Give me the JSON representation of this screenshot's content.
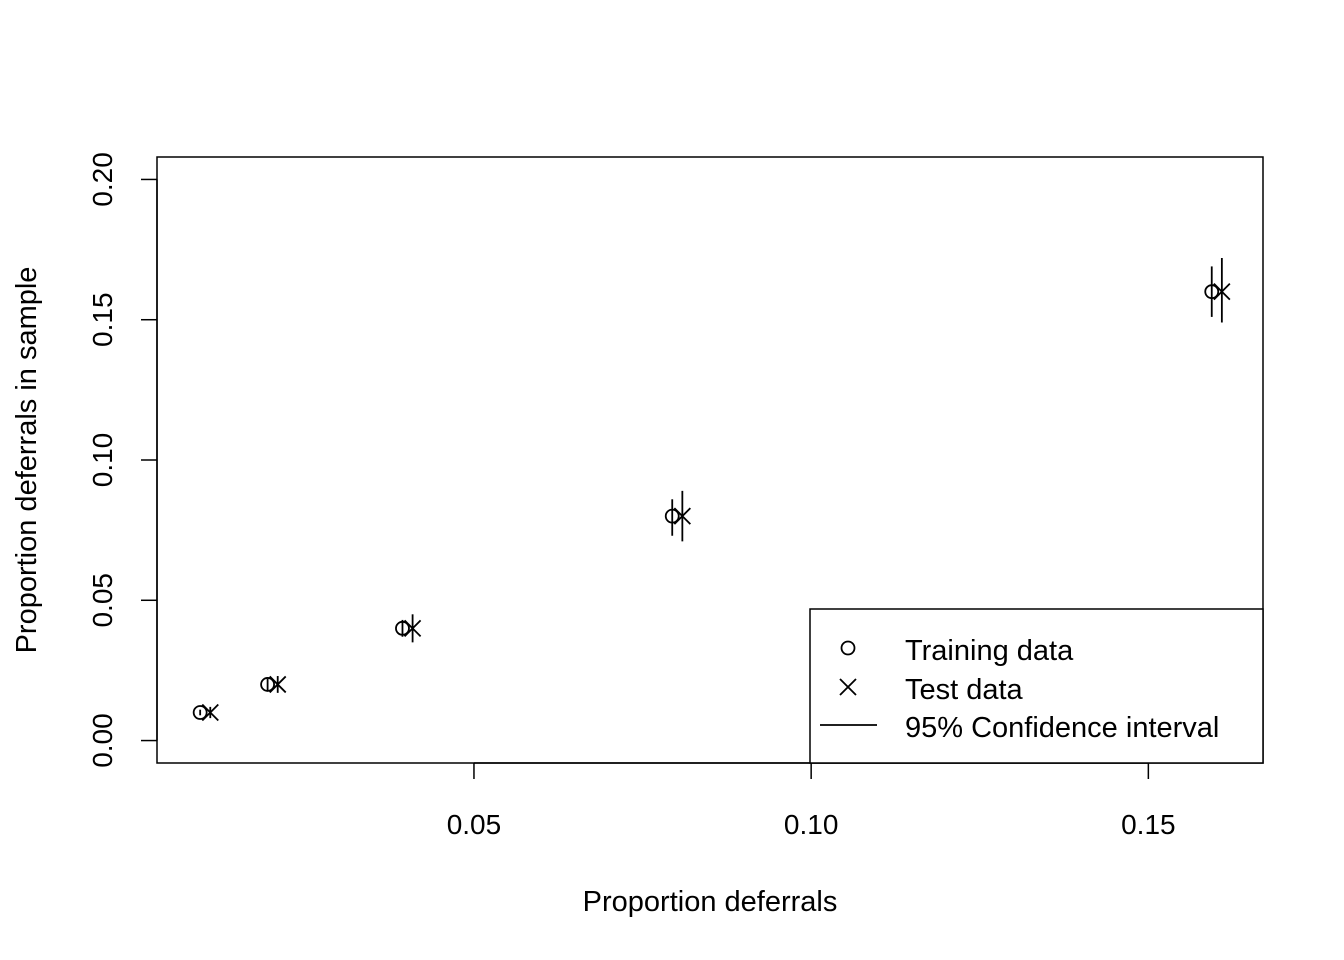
{
  "chart_data": {
    "type": "scatter",
    "title": "",
    "xlabel": "Proportion deferrals",
    "ylabel": "Proportion deferrals in sample",
    "xlim": [
      0.003,
      0.167
    ],
    "ylim": [
      -0.008,
      0.208
    ],
    "xticks": [
      "0.05",
      "0.10",
      "0.15"
    ],
    "xtick_values": [
      0.05,
      0.1,
      0.15
    ],
    "yticks": [
      "0.00",
      "0.05",
      "0.10",
      "0.15",
      "0.20"
    ],
    "ytick_values": [
      0.0,
      0.05,
      0.1,
      0.15,
      0.2
    ],
    "grid": false,
    "legend_position": "bottom-right",
    "series": [
      {
        "name": "Training data",
        "marker": "circle",
        "points": [
          {
            "x": 0.0094,
            "y": 0.01,
            "lo": 0.009,
            "hi": 0.011
          },
          {
            "x": 0.0194,
            "y": 0.02,
            "lo": 0.018,
            "hi": 0.022
          },
          {
            "x": 0.0394,
            "y": 0.04,
            "lo": 0.037,
            "hi": 0.043
          },
          {
            "x": 0.0794,
            "y": 0.08,
            "lo": 0.073,
            "hi": 0.086
          },
          {
            "x": 0.1594,
            "y": 0.16,
            "lo": 0.151,
            "hi": 0.169
          }
        ]
      },
      {
        "name": "Test data",
        "marker": "x",
        "points": [
          {
            "x": 0.0109,
            "y": 0.01,
            "lo": 0.008,
            "hi": 0.012
          },
          {
            "x": 0.0209,
            "y": 0.02,
            "lo": 0.017,
            "hi": 0.023
          },
          {
            "x": 0.0409,
            "y": 0.04,
            "lo": 0.035,
            "hi": 0.045
          },
          {
            "x": 0.0809,
            "y": 0.08,
            "lo": 0.071,
            "hi": 0.089
          },
          {
            "x": 0.1609,
            "y": 0.16,
            "lo": 0.149,
            "hi": 0.172
          }
        ]
      }
    ],
    "legend": [
      {
        "label": "Training data",
        "symbol": "circle"
      },
      {
        "label": "Test data",
        "symbol": "x"
      },
      {
        "label": "95% Confidence interval",
        "symbol": "line"
      }
    ],
    "colors": {
      "foreground": "#000000",
      "background": "#ffffff"
    }
  }
}
